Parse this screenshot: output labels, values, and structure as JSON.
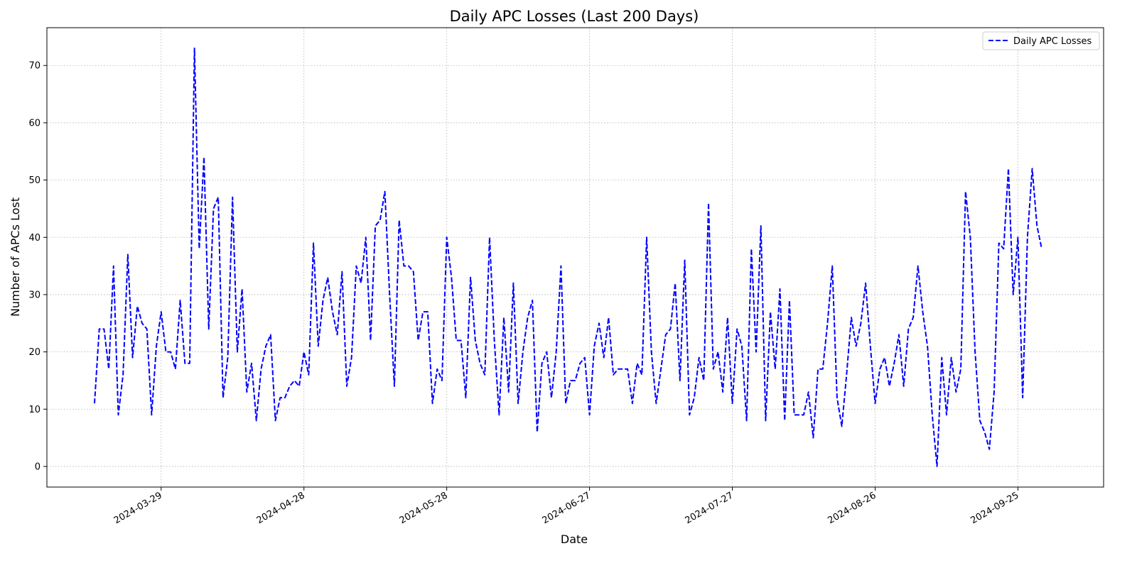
{
  "chart_data": {
    "type": "line",
    "title": "Daily APC Losses (Last 200 Days)",
    "xlabel": "Date",
    "ylabel": "Number of APCs Lost",
    "x_start": "2024-03-15",
    "x_ticks": [
      "2024-03-29",
      "2024-04-28",
      "2024-05-28",
      "2024-06-27",
      "2024-07-27",
      "2024-08-26",
      "2024-09-25"
    ],
    "x_range": [
      "2024-03-05",
      "2024-10-13"
    ],
    "y_ticks": [
      0,
      10,
      20,
      30,
      40,
      50,
      60,
      70
    ],
    "ylim": [
      -3.6,
      76.6
    ],
    "grid": true,
    "legend_position": "top-right",
    "colors": {
      "line": "#0000ff",
      "grid": "#b0b0b0"
    },
    "series": [
      {
        "name": "Daily APC Losses",
        "style": "dashed",
        "values": [
          11,
          24,
          24,
          17,
          35,
          9,
          16,
          37,
          19,
          28,
          25,
          24,
          9,
          21,
          27,
          20,
          20,
          17,
          29,
          18,
          18,
          73,
          38,
          54,
          24,
          45,
          47,
          12,
          19,
          47,
          20,
          31,
          13,
          18,
          8,
          17,
          21,
          23,
          8,
          12,
          12,
          14,
          15,
          14,
          20,
          16,
          39,
          21,
          29,
          33,
          27,
          23,
          34,
          14,
          19,
          35,
          32,
          40,
          22,
          42,
          43,
          48,
          30,
          14,
          43,
          35,
          35,
          34,
          22,
          27,
          27,
          11,
          17,
          15,
          40,
          33,
          22,
          22,
          12,
          33,
          22,
          18,
          16,
          40,
          22,
          9,
          26,
          13,
          32,
          11,
          20,
          26,
          29,
          6,
          18,
          20,
          12,
          20,
          35,
          11,
          15,
          15,
          18,
          19,
          9,
          21,
          25,
          19,
          26,
          16,
          17,
          17,
          17,
          11,
          18,
          16,
          40,
          20,
          11,
          17,
          23,
          24,
          32,
          15,
          36,
          9,
          12,
          19,
          15,
          46,
          17,
          20,
          13,
          26,
          11,
          24,
          21,
          8,
          38,
          20,
          42,
          8,
          27,
          17,
          31,
          8,
          29,
          9,
          9,
          9,
          13,
          5,
          17,
          17,
          25,
          35,
          12,
          7,
          16,
          26,
          21,
          25,
          32,
          21,
          11,
          17,
          19,
          14,
          18,
          23,
          14,
          24,
          26,
          35,
          27,
          21,
          9,
          0,
          19,
          9,
          19,
          13,
          17,
          48,
          40,
          20,
          8,
          6,
          3,
          13,
          39,
          38,
          52,
          30,
          40,
          12,
          40,
          52,
          42,
          38
        ]
      }
    ]
  }
}
